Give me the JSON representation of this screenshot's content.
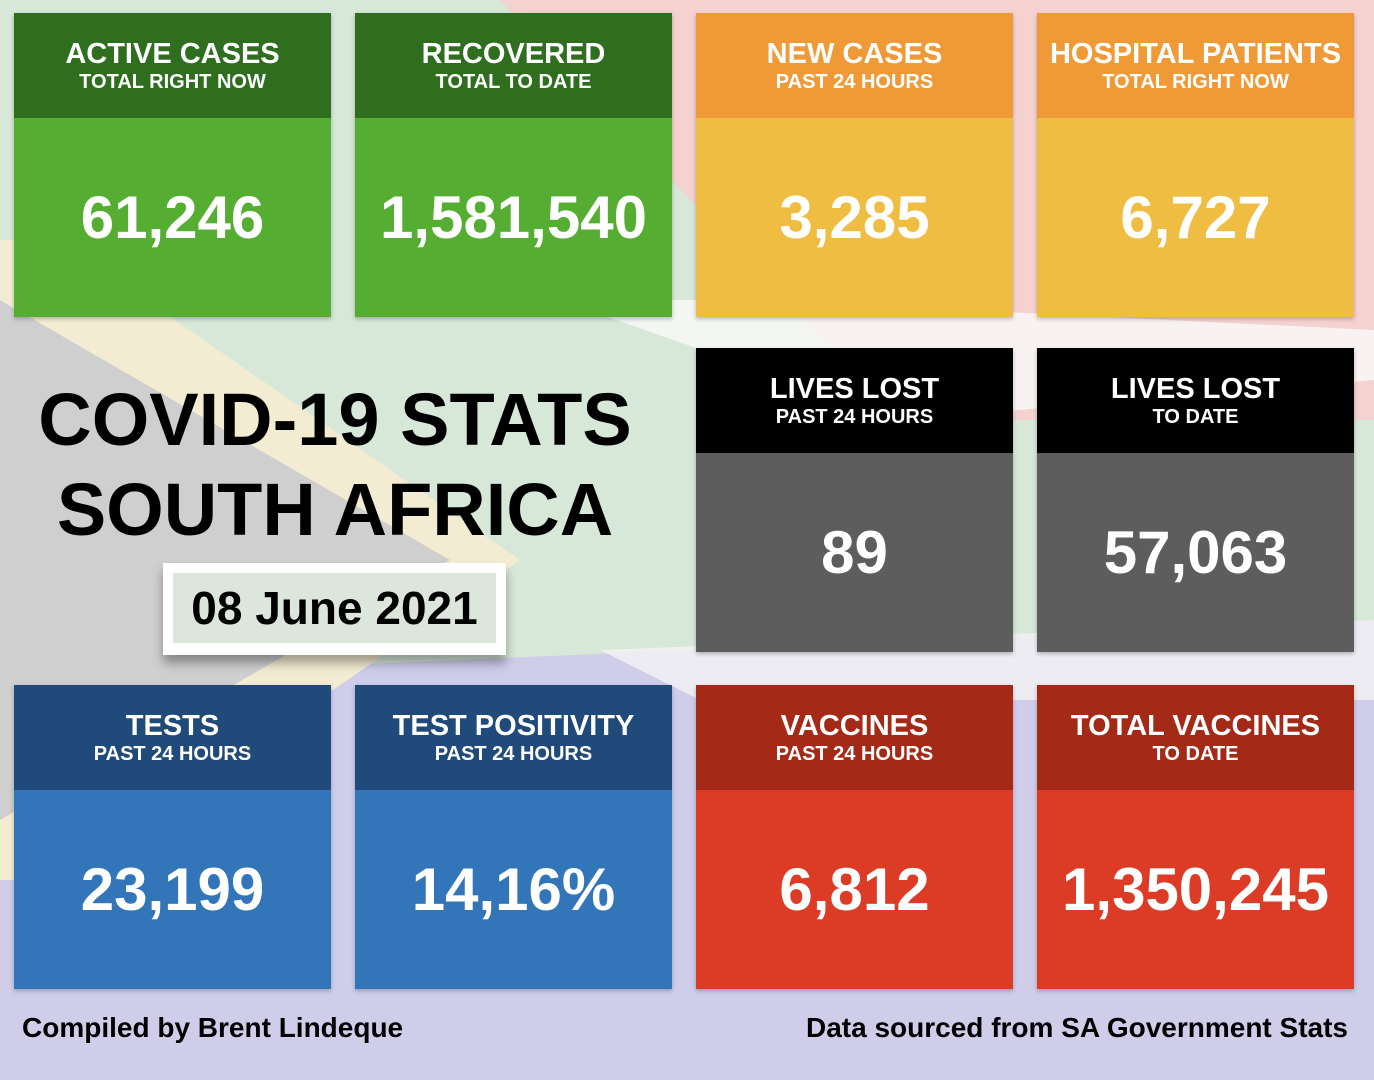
{
  "title": {
    "line1": "COVID-19 STATS",
    "line2": "SOUTH AFRICA",
    "date": "08 June 2021"
  },
  "colors": {
    "green_header": "#2e6e1e",
    "green_body": "#55ae32",
    "orange_header": "#ef9a36",
    "orange_body": "#efbd41",
    "black_header": "#000000",
    "grey_body": "#5d5d5d",
    "blue_header": "#1f4a7a",
    "blue_body": "#3375b9",
    "red_header": "#a42a17",
    "red_body": "#dc3b26"
  },
  "tiles": [
    {
      "title": "ACTIVE CASES",
      "subtitle": "TOTAL RIGHT NOW",
      "value": "61,246"
    },
    {
      "title": "RECOVERED",
      "subtitle": "TOTAL TO DATE",
      "value": "1,581,540"
    },
    {
      "title": "NEW CASES",
      "subtitle": "PAST 24 HOURS",
      "value": "3,285"
    },
    {
      "title": "HOSPITAL PATIENTS",
      "subtitle": "TOTAL RIGHT NOW",
      "value": "6,727"
    },
    {
      "title": "LIVES LOST",
      "subtitle": "PAST 24 HOURS",
      "value": "89"
    },
    {
      "title": "LIVES LOST",
      "subtitle": "TO DATE",
      "value": "57,063"
    },
    {
      "title": "TESTS",
      "subtitle": "PAST 24 HOURS",
      "value": "23,199"
    },
    {
      "title": "TEST POSITIVITY",
      "subtitle": "PAST 24 HOURS",
      "value": "14,16%"
    },
    {
      "title": "VACCINES",
      "subtitle": "PAST 24 HOURS",
      "value": "6,812"
    },
    {
      "title": "TOTAL VACCINES",
      "subtitle": "TO DATE",
      "value": "1,350,245"
    }
  ],
  "footer": {
    "left": "Compiled by Brent Lindeque",
    "right": "Data sourced from SA Government Stats"
  }
}
